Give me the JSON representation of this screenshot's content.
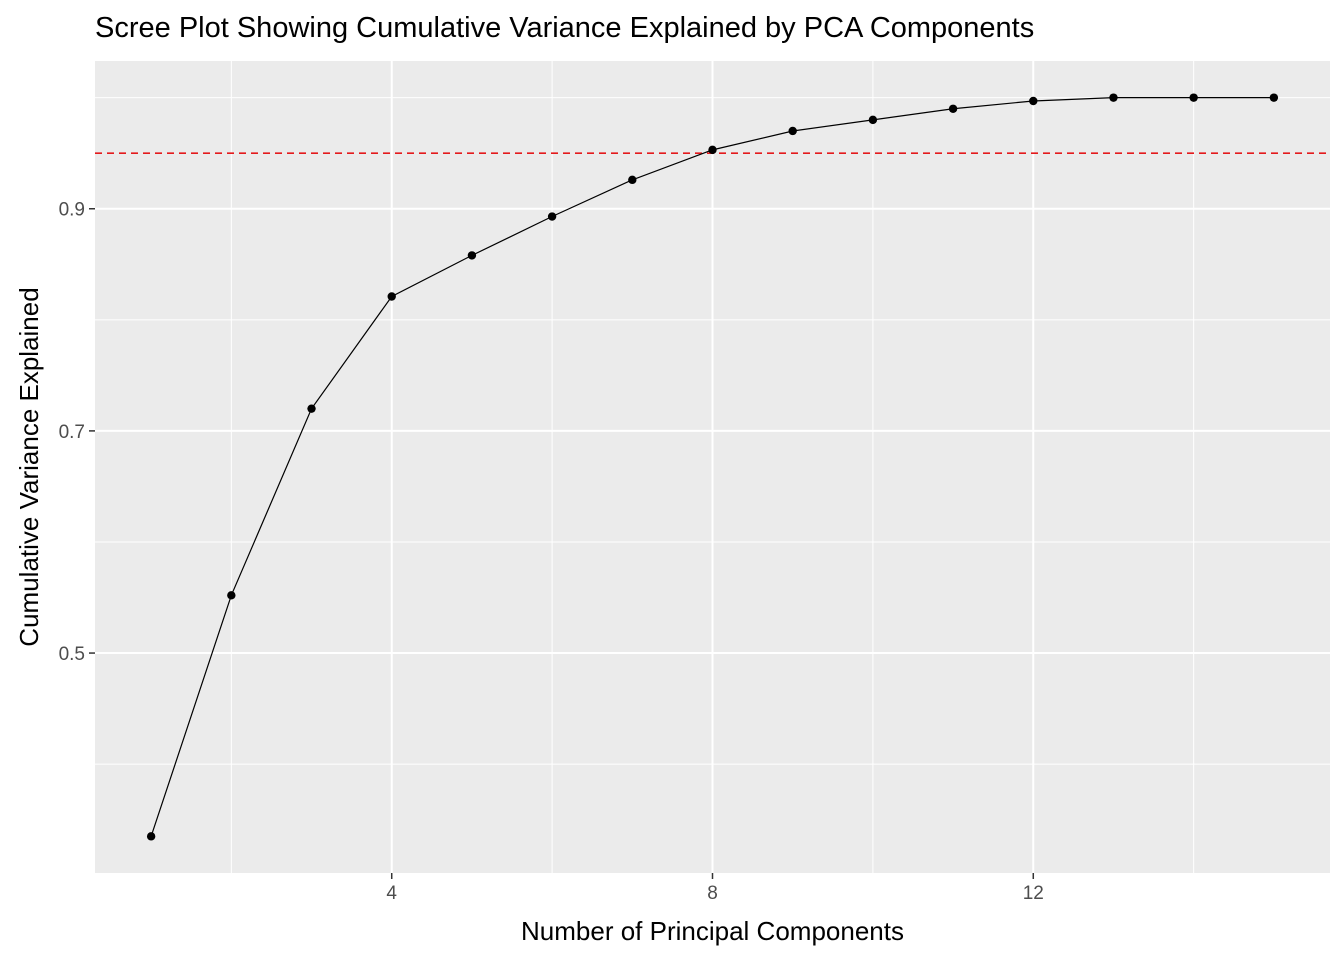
{
  "chart_data": {
    "type": "line",
    "title": "Scree Plot Showing Cumulative Variance Explained by PCA Components",
    "xlabel": "Number of Principal Components",
    "ylabel": "Cumulative Variance Explained",
    "x": [
      1,
      2,
      3,
      4,
      5,
      6,
      7,
      8,
      9,
      10,
      11,
      12,
      13,
      14,
      15
    ],
    "series": [
      {
        "values": [
          0.335,
          0.552,
          0.72,
          0.821,
          0.858,
          0.893,
          0.926,
          0.953,
          0.97,
          0.98,
          0.99,
          0.997,
          1.0,
          1.0,
          1.0
        ]
      }
    ],
    "xlim": [
      0.3,
      15.7
    ],
    "ylim": [
      0.302,
      1.033
    ],
    "x_ticks": [
      4,
      8,
      12
    ],
    "x_tick_labels": [
      "4",
      "8",
      "12"
    ],
    "y_ticks": [
      0.5,
      0.7,
      0.9
    ],
    "y_tick_labels": [
      "0.5",
      "0.7",
      "0.9"
    ],
    "x_minor_ticks": [
      2,
      6,
      10,
      14
    ],
    "y_minor_ticks": [
      0.4,
      0.6,
      0.8,
      1.0
    ],
    "reference_line": {
      "orientation": "horizontal",
      "y": 0.95,
      "style": "dashed",
      "color": "#e41a1c"
    },
    "grid": true,
    "legend": "none",
    "colors": {
      "panel_background": "#ebebeb",
      "grid": "#ffffff",
      "line": "#000000",
      "points": "#000000"
    }
  }
}
